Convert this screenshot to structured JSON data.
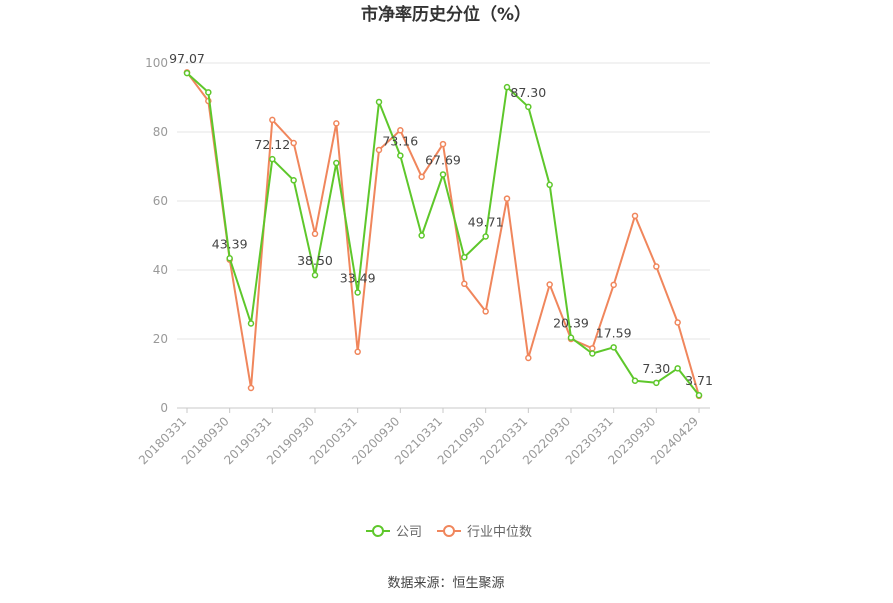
{
  "chart_data": {
    "type": "line",
    "title": "市净率历史分位（%）",
    "source": "数据来源：恒生聚源",
    "ylim": [
      0,
      100
    ],
    "yticks": [
      0,
      20,
      40,
      60,
      80,
      100
    ],
    "x": [
      "20180331",
      "20180630",
      "20180930",
      "20181231",
      "20190331",
      "20190630",
      "20190930",
      "20191231",
      "20200331",
      "20200630",
      "20200930",
      "20201231",
      "20210331",
      "20210630",
      "20210930",
      "20211231",
      "20220331",
      "20220630",
      "20220930",
      "20221231",
      "20230331",
      "20230630",
      "20230930",
      "20231231",
      "20240429"
    ],
    "xtick_labels": [
      "20180331",
      "20180930",
      "20190331",
      "20190930",
      "20200331",
      "20200930",
      "20210331",
      "20210930",
      "20220331",
      "20220930",
      "20230331",
      "20230930",
      "20240429"
    ],
    "series": [
      {
        "name": "公司",
        "color": "#5ec72b",
        "values": [
          97.07,
          91.5,
          43.39,
          24.5,
          72.12,
          66.0,
          38.5,
          71.0,
          33.49,
          88.7,
          73.16,
          50.0,
          67.69,
          43.7,
          49.71,
          93.0,
          87.3,
          64.7,
          20.39,
          15.8,
          17.59,
          7.9,
          7.3,
          11.5,
          3.71
        ]
      },
      {
        "name": "行业中位数",
        "color": "#f0865c",
        "values": [
          97.3,
          89.0,
          43.0,
          5.8,
          83.5,
          76.8,
          50.5,
          82.5,
          16.3,
          74.8,
          80.5,
          67.0,
          76.5,
          36.0,
          28.0,
          60.7,
          14.5,
          35.8,
          20.0,
          17.3,
          35.7,
          55.7,
          41.0,
          24.8,
          3.5
        ]
      }
    ],
    "data_labels": [
      {
        "index": 0,
        "text": "97.07"
      },
      {
        "index": 2,
        "text": "43.39"
      },
      {
        "index": 4,
        "text": "72.12"
      },
      {
        "index": 6,
        "text": "38.50"
      },
      {
        "index": 8,
        "text": "33.49"
      },
      {
        "index": 10,
        "text": "73.16"
      },
      {
        "index": 12,
        "text": "67.69"
      },
      {
        "index": 14,
        "text": "49.71"
      },
      {
        "index": 16,
        "text": "87.30"
      },
      {
        "index": 18,
        "text": "20.39"
      },
      {
        "index": 20,
        "text": "17.59"
      },
      {
        "index": 22,
        "text": "7.30"
      },
      {
        "index": 24,
        "text": "3.71"
      }
    ],
    "grid": true,
    "legend_position": "bottom"
  }
}
